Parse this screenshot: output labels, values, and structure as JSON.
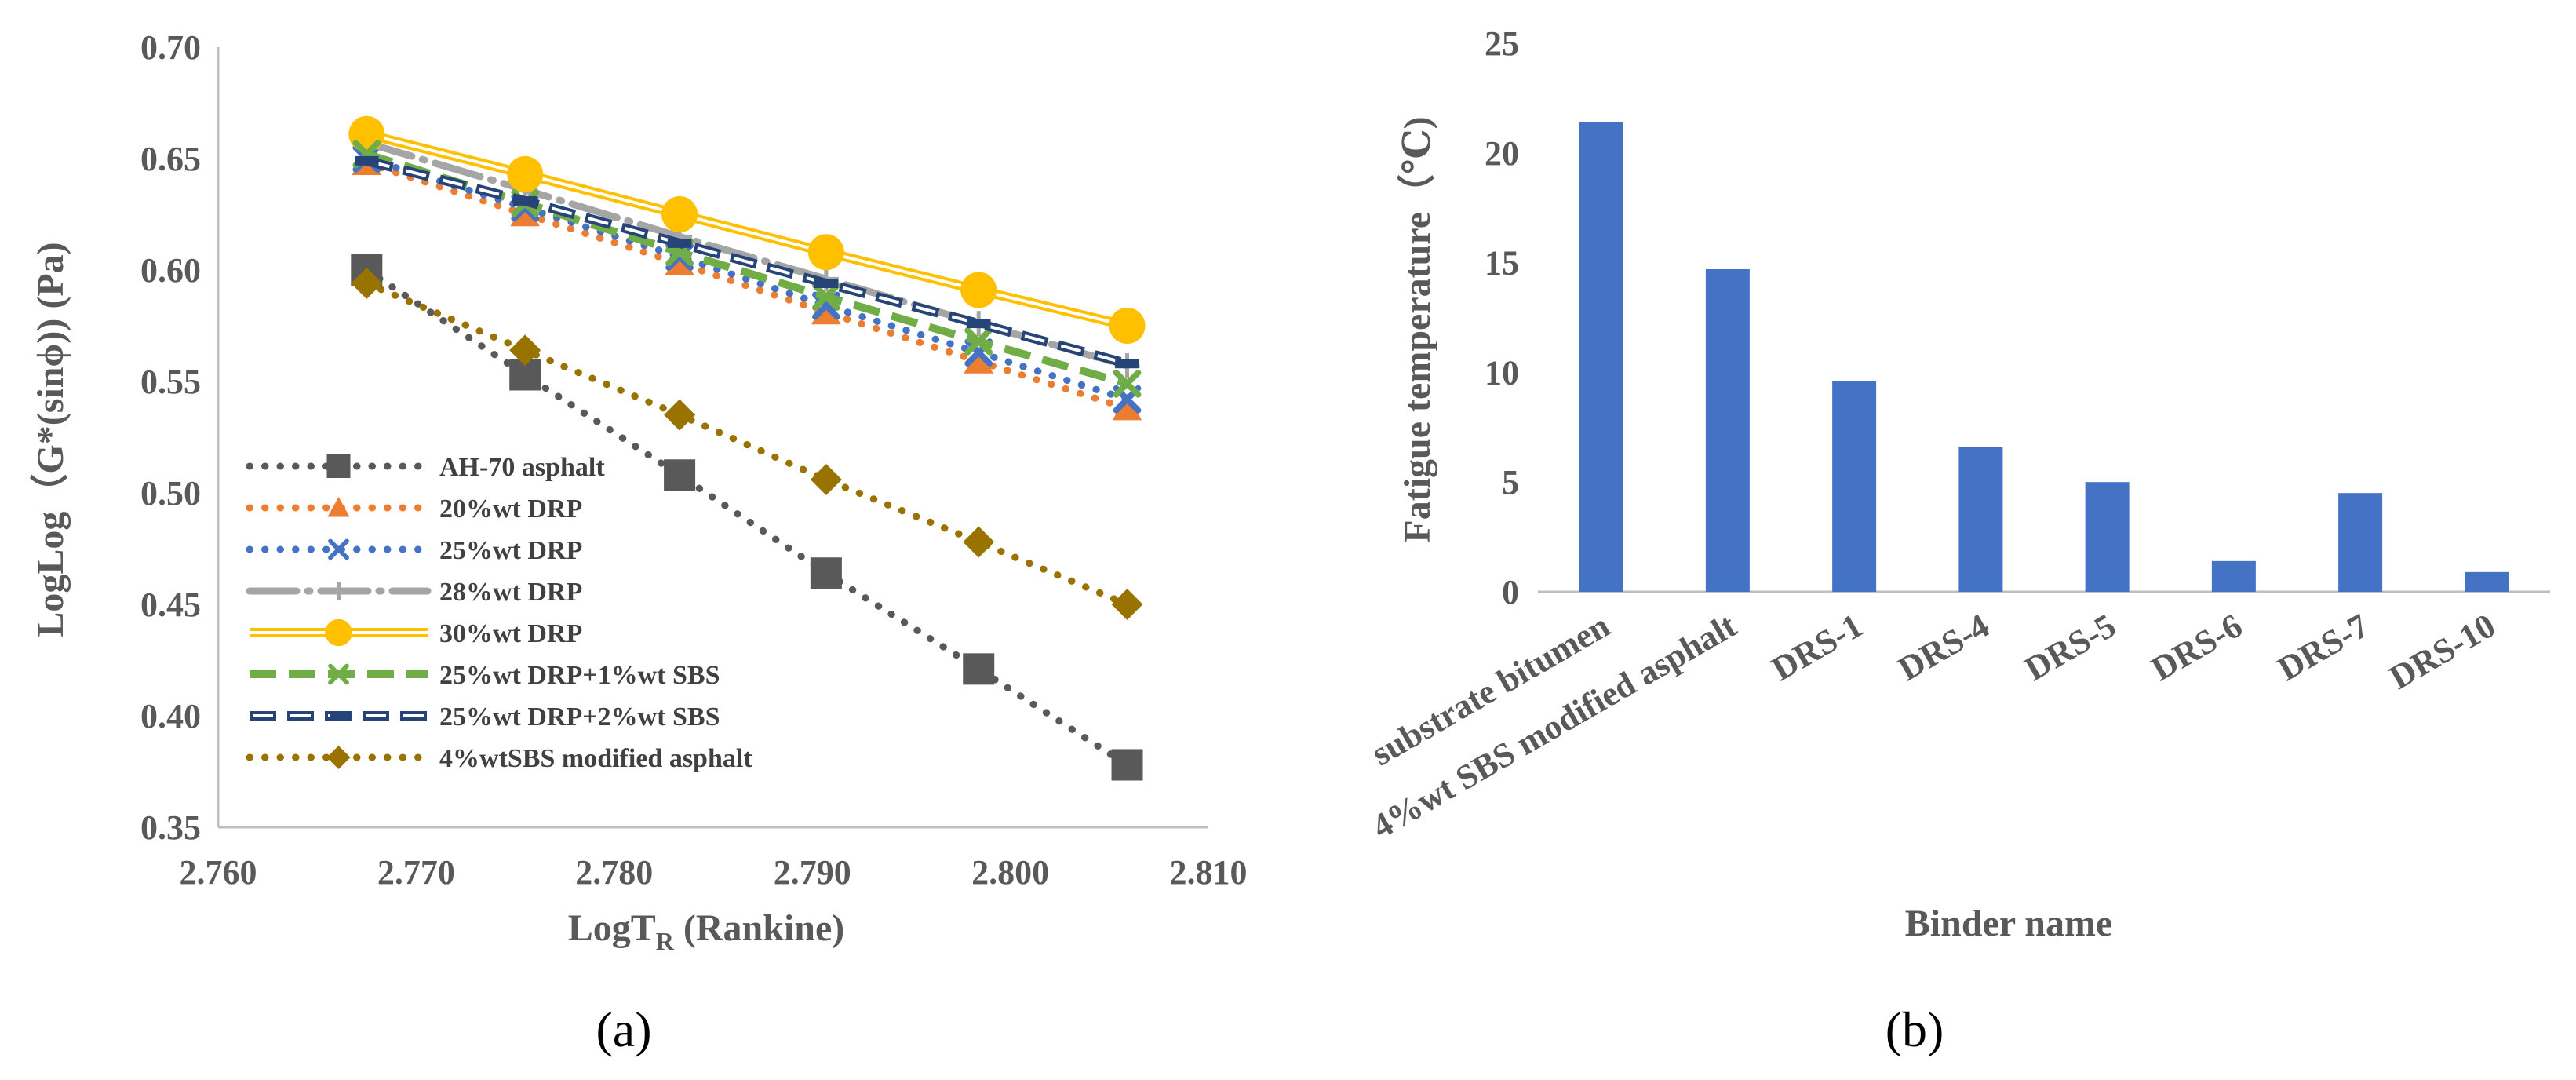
{
  "chart_data": [
    {
      "type": "line",
      "caption": "(a)",
      "xlabel_main": "LogT",
      "xlabel_sub": "R",
      "xlabel_tail": " (Rankine)",
      "ylabel": "LogLog（G*(sinϕ)) (Pa)",
      "xlim": [
        2.76,
        2.81
      ],
      "ylim": [
        0.35,
        0.7
      ],
      "x_ticks": [
        "2.760",
        "2.770",
        "2.780",
        "2.790",
        "2.800",
        "2.810"
      ],
      "y_ticks": [
        "0.35",
        "0.40",
        "0.45",
        "0.50",
        "0.55",
        "0.60",
        "0.65",
        "0.70"
      ],
      "grid": false,
      "legend_position": "bottom-left",
      "series": [
        {
          "name": "AH-70 asphalt",
          "color": "#595959",
          "marker": "square",
          "line": "dot",
          "x": [
            2.7675,
            2.7755,
            2.7833,
            2.7907,
            2.7984,
            2.8059
          ],
          "y": [
            0.6,
            0.553,
            0.508,
            0.464,
            0.421,
            0.378
          ]
        },
        {
          "name": "20%wt DRP",
          "color": "#ED7D31",
          "marker": "triangle",
          "line": "dot",
          "x": [
            2.7675,
            2.7755,
            2.7833,
            2.7907,
            2.7984,
            2.8059
          ],
          "y": [
            0.648,
            0.625,
            0.603,
            0.581,
            0.559,
            0.538
          ]
        },
        {
          "name": "25%wt DRP",
          "color": "#4472C4",
          "marker": "x",
          "line": "dot",
          "x": [
            2.7675,
            2.7755,
            2.7833,
            2.7907,
            2.7984,
            2.8059
          ],
          "y": [
            0.65,
            0.628,
            0.606,
            0.584,
            0.563,
            0.542
          ]
        },
        {
          "name": "28%wt DRP",
          "color": "#A5A5A5",
          "marker": "plus",
          "line": "dashdot",
          "x": [
            2.7675,
            2.7755,
            2.7833,
            2.7907,
            2.7984,
            2.8059
          ],
          "y": [
            0.657,
            0.636,
            0.615,
            0.596,
            0.576,
            0.557
          ]
        },
        {
          "name": "30%wt DRP",
          "color": "#FFC000",
          "marker": "circle",
          "line": "double",
          "x": [
            2.7675,
            2.7755,
            2.7833,
            2.7907,
            2.7984,
            2.8059
          ],
          "y": [
            0.661,
            0.643,
            0.625,
            0.608,
            0.591,
            0.575
          ]
        },
        {
          "name": "25%wt DRP+1%wt SBS",
          "color": "#70AD47",
          "marker": "x",
          "line": "dash",
          "x": [
            2.7675,
            2.7755,
            2.7833,
            2.7907,
            2.7984,
            2.8059
          ],
          "y": [
            0.652,
            0.63,
            0.608,
            0.588,
            0.568,
            0.549
          ]
        },
        {
          "name": "25%wt DRP+2%wt SBS",
          "color": "#264478",
          "marker": "dash",
          "line": "hollowdash",
          "x": [
            2.7675,
            2.7755,
            2.7833,
            2.7907,
            2.7984,
            2.8059
          ],
          "y": [
            0.649,
            0.631,
            0.612,
            0.594,
            0.576,
            0.558
          ]
        },
        {
          "name": "4%wtSBS modified asphalt",
          "color": "#997300",
          "marker": "diamond",
          "line": "dot",
          "x": [
            2.7675,
            2.7755,
            2.7833,
            2.7907,
            2.7984,
            2.8059
          ],
          "y": [
            0.594,
            0.564,
            0.535,
            0.506,
            0.478,
            0.45
          ]
        }
      ]
    },
    {
      "type": "bar",
      "caption": "(b)",
      "title": "",
      "xlabel": "Binder name",
      "ylabel": "Fatigue temperature（℃)",
      "ylim": [
        0,
        25
      ],
      "y_ticks": [
        "0",
        "5",
        "10",
        "15",
        "20",
        "25"
      ],
      "grid": false,
      "bar_color": "#4472C4",
      "categories": [
        "substrate bitumen",
        "4%wt SBS modified asphalt",
        "DRS-1",
        "DRS-4",
        "DRS-5",
        "DRS-6",
        "DRS-7",
        "DRS-10"
      ],
      "values": [
        21.4,
        14.7,
        9.6,
        6.6,
        5.0,
        1.4,
        4.5,
        0.9
      ]
    }
  ]
}
